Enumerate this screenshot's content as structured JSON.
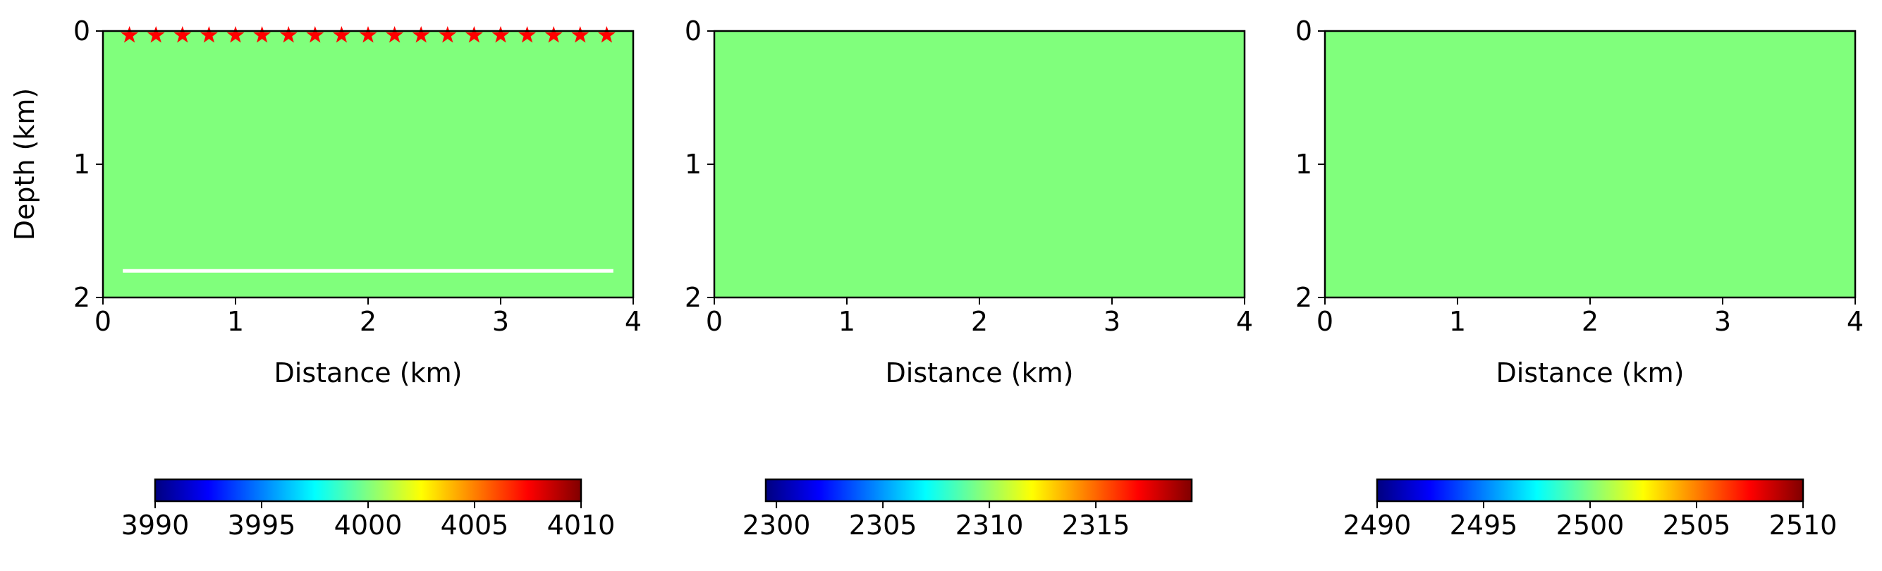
{
  "colormap": {
    "name": "jet",
    "stops": [
      "#000080",
      "#0000ff",
      "#0080ff",
      "#00ffff",
      "#80ff80",
      "#ffff00",
      "#ff8000",
      "#ff0000",
      "#800000"
    ]
  },
  "chart_data": [
    {
      "type": "heatmap",
      "title": "",
      "xlabel": "Distance (km)",
      "ylabel": "Depth (km)",
      "xlim": [
        0,
        4
      ],
      "ylim": [
        2,
        0
      ],
      "xticks": [
        "0",
        "1",
        "2",
        "3",
        "4"
      ],
      "yticks": [
        "0",
        "1",
        "2"
      ],
      "field_value": 4000,
      "field_color": "#80ff7c",
      "grid": false,
      "sources": {
        "marker": "star",
        "color": "#ff0000",
        "depth": 0,
        "x": [
          0.2,
          0.4,
          0.6,
          0.8,
          1.0,
          1.2,
          1.4,
          1.6,
          1.8,
          2.0,
          2.2,
          2.4,
          2.6,
          2.8,
          3.0,
          3.2,
          3.4,
          3.6,
          3.8
        ]
      },
      "receiver_line": {
        "color": "#ffffff",
        "depth": 1.8,
        "x_start": 0.15,
        "x_end": 3.85
      },
      "colorbar": {
        "orientation": "horizontal",
        "range": [
          3990,
          4010
        ],
        "ticks": [
          3990,
          3995,
          4000,
          4005,
          4010
        ],
        "tick_labels": [
          "3990",
          "3995",
          "4000",
          "4005",
          "4010"
        ]
      }
    },
    {
      "type": "heatmap",
      "title": "",
      "xlabel": "Distance (km)",
      "ylabel": "",
      "xlim": [
        0,
        4
      ],
      "ylim": [
        2,
        0
      ],
      "xticks": [
        "0",
        "1",
        "2",
        "3",
        "4"
      ],
      "yticks": [
        "0",
        "1",
        "2"
      ],
      "field_value": 2309.5,
      "field_color": "#80ff7c",
      "grid": false,
      "colorbar": {
        "orientation": "horizontal",
        "range": [
          2299.5,
          2319.5
        ],
        "ticks": [
          2300,
          2305,
          2310,
          2315
        ],
        "tick_labels": [
          "2300",
          "2305",
          "2310",
          "2315"
        ]
      }
    },
    {
      "type": "heatmap",
      "title": "",
      "xlabel": "Distance (km)",
      "ylabel": "",
      "xlim": [
        0,
        4
      ],
      "ylim": [
        2,
        0
      ],
      "xticks": [
        "0",
        "1",
        "2",
        "3",
        "4"
      ],
      "yticks": [
        "0",
        "1",
        "2"
      ],
      "field_value": 2500,
      "field_color": "#80ff7c",
      "grid": false,
      "colorbar": {
        "orientation": "horizontal",
        "range": [
          2490,
          2510
        ],
        "ticks": [
          2490,
          2495,
          2500,
          2505,
          2510
        ],
        "tick_labels": [
          "2490",
          "2495",
          "2500",
          "2505",
          "2510"
        ]
      }
    }
  ]
}
